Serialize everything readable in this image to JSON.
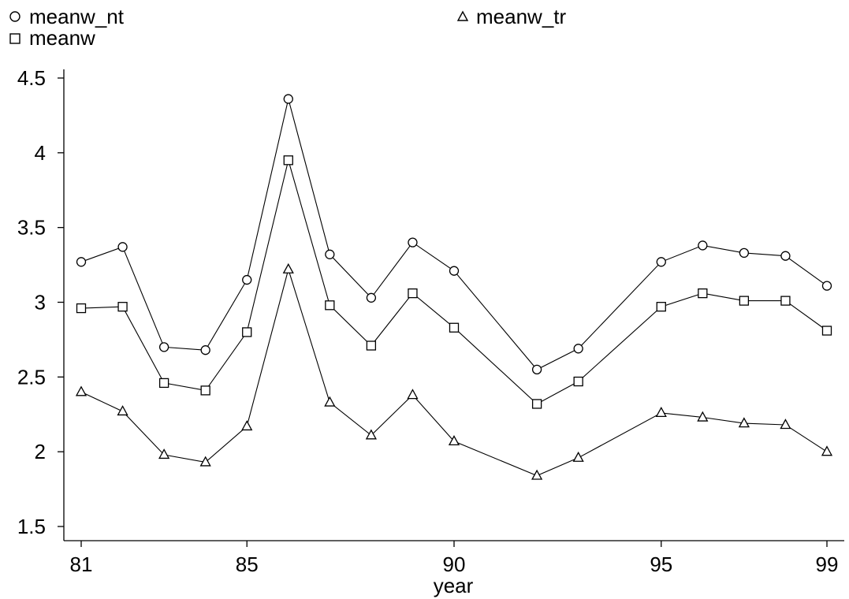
{
  "chart_data": {
    "type": "line",
    "xlabel": "year",
    "ylabel": "",
    "x": [
      81,
      82,
      83,
      84,
      85,
      86,
      87,
      88,
      89,
      90,
      92,
      93,
      95,
      96,
      97,
      98,
      99
    ],
    "xticks": [
      81,
      85,
      90,
      95,
      99
    ],
    "xlim": [
      81,
      99
    ],
    "yticks": [
      1.5,
      2,
      2.5,
      3,
      3.5,
      4,
      4.5
    ],
    "ylim": [
      1.5,
      4.5
    ],
    "grid": false,
    "legend_position": "top",
    "series": [
      {
        "name": "meanw_nt",
        "marker": "circle",
        "values": [
          3.27,
          3.37,
          2.7,
          2.68,
          3.15,
          4.36,
          3.32,
          3.03,
          3.4,
          3.21,
          2.55,
          2.69,
          3.27,
          3.38,
          3.33,
          3.31,
          3.11
        ]
      },
      {
        "name": "meanw",
        "marker": "square",
        "values": [
          2.96,
          2.97,
          2.46,
          2.41,
          2.8,
          3.95,
          2.98,
          2.71,
          3.06,
          2.83,
          2.32,
          2.47,
          2.97,
          3.06,
          3.01,
          3.01,
          2.81
        ]
      },
      {
        "name": "meanw_tr",
        "marker": "triangle",
        "values": [
          2.4,
          2.27,
          1.98,
          1.93,
          2.17,
          3.22,
          2.33,
          2.11,
          2.38,
          2.07,
          1.84,
          1.96,
          2.26,
          2.23,
          2.19,
          2.18,
          2.0
        ]
      }
    ],
    "line_color": "#000000",
    "background_color": "#ffffff"
  }
}
